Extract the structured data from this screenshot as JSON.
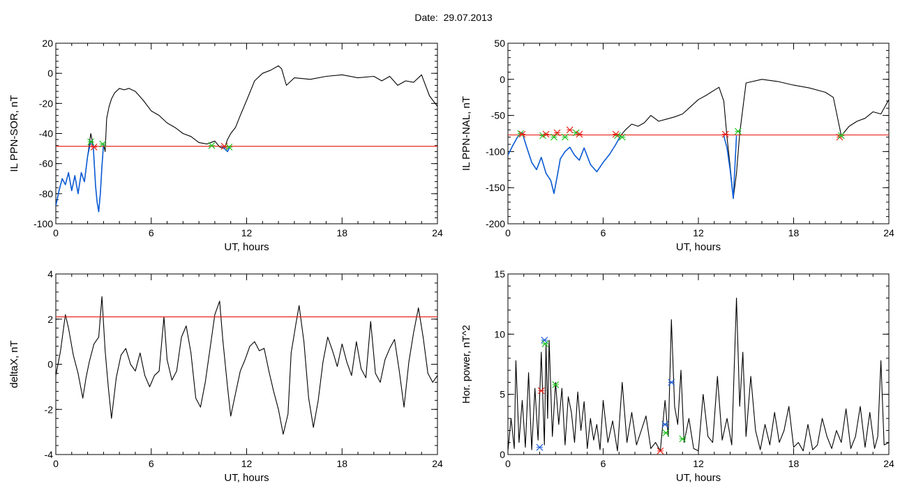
{
  "title": "Date:  29.07.2013",
  "colors": {
    "frame": "#000000",
    "signal": "#000000",
    "segment": "#0b5cd5",
    "threshold": "#e8231b",
    "mark_red": "#e8231b",
    "mark_green": "#22c222",
    "mark_blue": "#1f5fd8"
  },
  "chart_data": [
    {
      "type": "line",
      "ylabel": "IL PPN-SOR, nT",
      "xlabel": "UT, hours",
      "xlim": [
        0,
        24
      ],
      "ylim": [
        -100,
        20
      ],
      "xticks": [
        "0",
        "6",
        "12",
        "18",
        "24"
      ],
      "yticks": [
        "20",
        "0",
        "-20",
        "-40",
        "-60",
        "-80",
        "-100"
      ],
      "grid": false,
      "threshold": -48.5,
      "series": [
        {
          "role": "signal",
          "color": "black",
          "x": [
            0,
            0.2,
            0.4,
            0.6,
            0.8,
            1.0,
            1.2,
            1.4,
            1.6,
            1.8,
            2.0,
            2.2,
            2.35,
            2.5,
            2.6,
            2.7,
            2.8,
            2.9,
            3.0,
            3.1,
            3.2,
            3.35,
            3.5,
            3.7,
            4.0,
            4.3,
            4.6,
            5.0,
            5.5,
            6.0,
            6.5,
            7.0,
            7.5,
            8.0,
            8.5,
            9.0,
            9.5,
            10.0,
            10.3,
            10.6,
            10.8,
            11.0,
            11.3,
            11.6,
            12.0,
            12.5,
            13.0,
            13.5,
            14.0,
            14.2,
            14.5,
            15.0,
            16.0,
            17.0,
            18.0,
            19.0,
            20.0,
            20.5,
            21.0,
            21.5,
            22.0,
            22.5,
            23.0,
            23.5,
            24.0
          ],
          "y": [
            -88,
            -78,
            -70,
            -74,
            -66,
            -78,
            -68,
            -80,
            -66,
            -72,
            -55,
            -40,
            -48,
            -75,
            -86,
            -92,
            -80,
            -62,
            -47,
            -52,
            -30,
            -22,
            -17,
            -13,
            -10,
            -11,
            -10,
            -12,
            -18,
            -25,
            -28,
            -33,
            -36,
            -40,
            -42,
            -46,
            -47,
            -45,
            -49,
            -50,
            -44,
            -40,
            -36,
            -28,
            -18,
            -5,
            0,
            2,
            5,
            3,
            -8,
            -3,
            -4,
            -2,
            -1,
            -3,
            -2,
            -5,
            -2,
            -8,
            -5,
            -6,
            -1,
            -15,
            -22
          ]
        },
        {
          "role": "segment",
          "color": "blue",
          "x": [
            0,
            0.2,
            0.4,
            0.6,
            0.8,
            1.0,
            1.2,
            1.4,
            1.6,
            1.8,
            2.0,
            2.2,
            2.35,
            2.5,
            2.6,
            2.7,
            2.8,
            2.9,
            3.0
          ],
          "y": [
            -88,
            -78,
            -70,
            -74,
            -66,
            -78,
            -68,
            -80,
            -66,
            -72,
            -55,
            -45,
            -48,
            -75,
            -86,
            -92,
            -80,
            -62,
            -47
          ]
        },
        {
          "role": "segment",
          "color": "blue",
          "x": [
            10.4,
            10.6,
            10.8,
            11.0
          ],
          "y": [
            -48,
            -50,
            -52,
            -48
          ]
        }
      ],
      "markers": [
        {
          "x": 2.2,
          "y": -45.5,
          "color": "green"
        },
        {
          "x": 2.4,
          "y": -49,
          "color": "red"
        },
        {
          "x": 2.95,
          "y": -47,
          "color": "green"
        },
        {
          "x": 9.8,
          "y": -48,
          "color": "green"
        },
        {
          "x": 10.6,
          "y": -48.5,
          "color": "red"
        },
        {
          "x": 10.9,
          "y": -49,
          "color": "green"
        }
      ]
    },
    {
      "type": "line",
      "ylabel": "IL PPN-NAL, nT",
      "xlabel": "UT, hours",
      "xlim": [
        0,
        24
      ],
      "ylim": [
        -200,
        50
      ],
      "xticks": [
        "0",
        "6",
        "12",
        "18",
        "24"
      ],
      "yticks": [
        "50",
        "0",
        "-50",
        "-100",
        "-150",
        "-200"
      ],
      "grid": false,
      "threshold": -77,
      "series": [
        {
          "role": "signal",
          "color": "black",
          "x": [
            0,
            0.3,
            0.6,
            0.9,
            1.2,
            1.5,
            1.8,
            2.1,
            2.4,
            2.7,
            2.9,
            3.1,
            3.3,
            3.6,
            3.9,
            4.2,
            4.5,
            4.8,
            5.2,
            5.6,
            6.0,
            6.4,
            6.8,
            7.1,
            7.4,
            7.8,
            8.2,
            8.6,
            9.0,
            9.5,
            10.0,
            10.5,
            11.0,
            11.5,
            12.0,
            12.5,
            13.0,
            13.3,
            13.6,
            13.8,
            14.0,
            14.2,
            14.4,
            14.6,
            15.0,
            16.0,
            17.0,
            18.0,
            19.0,
            20.0,
            20.5,
            21.0,
            21.5,
            22.0,
            22.5,
            23.0,
            23.5,
            24.0
          ],
          "y": [
            -105,
            -92,
            -80,
            -74,
            -95,
            -115,
            -125,
            -108,
            -130,
            -140,
            -158,
            -135,
            -110,
            -100,
            -94,
            -105,
            -112,
            -95,
            -118,
            -128,
            -115,
            -104,
            -90,
            -78,
            -70,
            -62,
            -65,
            -60,
            -50,
            -58,
            -55,
            -52,
            -48,
            -38,
            -28,
            -22,
            -15,
            -11,
            -30,
            -80,
            -120,
            -165,
            -130,
            -75,
            -5,
            0,
            -3,
            -8,
            -12,
            -18,
            -25,
            -78,
            -65,
            -58,
            -54,
            -45,
            -48,
            -28
          ]
        },
        {
          "role": "segment",
          "color": "blue",
          "x": [
            0,
            0.3,
            0.6,
            0.9,
            1.2,
            1.5,
            1.8,
            2.1,
            2.4,
            2.7,
            2.9,
            3.1,
            3.3,
            3.6,
            3.9,
            4.2,
            4.5,
            4.8,
            5.2,
            5.6,
            6.0,
            6.4,
            6.8,
            7.1
          ],
          "y": [
            -105,
            -92,
            -80,
            -74,
            -95,
            -115,
            -125,
            -108,
            -130,
            -140,
            -158,
            -135,
            -110,
            -100,
            -94,
            -105,
            -112,
            -95,
            -118,
            -128,
            -115,
            -104,
            -90,
            -78
          ]
        },
        {
          "role": "segment",
          "color": "blue",
          "x": [
            13.6,
            13.8,
            14.0,
            14.2,
            14.4
          ],
          "y": [
            -78,
            -95,
            -125,
            -165,
            -78
          ]
        }
      ],
      "markers": [
        {
          "x": 0.8,
          "y": -75,
          "color": "green"
        },
        {
          "x": 0.9,
          "y": -76,
          "color": "red"
        },
        {
          "x": 2.2,
          "y": -78,
          "color": "green"
        },
        {
          "x": 2.4,
          "y": -76,
          "color": "red"
        },
        {
          "x": 2.9,
          "y": -80,
          "color": "green"
        },
        {
          "x": 3.1,
          "y": -74,
          "color": "red"
        },
        {
          "x": 3.6,
          "y": -80,
          "color": "green"
        },
        {
          "x": 3.9,
          "y": -70,
          "color": "red"
        },
        {
          "x": 4.3,
          "y": -74,
          "color": "green"
        },
        {
          "x": 4.5,
          "y": -76,
          "color": "red"
        },
        {
          "x": 6.9,
          "y": -78,
          "color": "green"
        },
        {
          "x": 6.8,
          "y": -76,
          "color": "red"
        },
        {
          "x": 7.2,
          "y": -80,
          "color": "green"
        },
        {
          "x": 13.7,
          "y": -76,
          "color": "red"
        },
        {
          "x": 14.5,
          "y": -72,
          "color": "green"
        },
        {
          "x": 20.9,
          "y": -80,
          "color": "red"
        },
        {
          "x": 21.0,
          "y": -78,
          "color": "green"
        }
      ]
    },
    {
      "type": "line",
      "ylabel": "deltaX, nT",
      "xlabel": "UT, hours",
      "xlim": [
        0,
        24
      ],
      "ylim": [
        -4,
        4
      ],
      "xticks": [
        "0",
        "6",
        "12",
        "18",
        "24"
      ],
      "yticks": [
        "4",
        "2",
        "0",
        "-2",
        "-4"
      ],
      "grid": false,
      "threshold": 2.1,
      "series": [
        {
          "role": "signal",
          "color": "black",
          "x": [
            0,
            0.3,
            0.6,
            0.8,
            1.1,
            1.4,
            1.7,
            1.9,
            2.1,
            2.4,
            2.7,
            2.9,
            3.1,
            3.3,
            3.5,
            3.8,
            4.1,
            4.4,
            4.7,
            5.0,
            5.3,
            5.6,
            5.9,
            6.2,
            6.5,
            6.8,
            7.0,
            7.3,
            7.6,
            7.9,
            8.2,
            8.5,
            8.8,
            9.1,
            9.4,
            9.7,
            10.0,
            10.3,
            10.5,
            10.8,
            11.0,
            11.3,
            11.6,
            11.9,
            12.2,
            12.5,
            12.8,
            13.1,
            13.4,
            13.7,
            14.0,
            14.3,
            14.6,
            14.8,
            15.1,
            15.3,
            15.6,
            15.9,
            16.2,
            16.5,
            16.8,
            17.1,
            17.4,
            17.7,
            18.0,
            18.3,
            18.6,
            18.9,
            19.2,
            19.5,
            19.8,
            20.1,
            20.4,
            20.7,
            21.0,
            21.3,
            21.6,
            21.9,
            22.2,
            22.5,
            22.8,
            23.1,
            23.4,
            23.7,
            24.0
          ],
          "y": [
            -0.5,
            0.6,
            2.2,
            1.6,
            0.4,
            -0.4,
            -1.5,
            -0.6,
            0.1,
            0.9,
            1.2,
            3.0,
            0.6,
            -1.0,
            -2.4,
            -0.6,
            0.4,
            0.7,
            0.0,
            -0.3,
            0.5,
            -0.5,
            -1.0,
            -0.5,
            -0.3,
            2.1,
            0.2,
            -0.7,
            -0.3,
            1.2,
            1.7,
            0.5,
            -1.5,
            -1.9,
            -0.8,
            0.7,
            2.2,
            2.8,
            1.1,
            -1.0,
            -2.3,
            -1.3,
            -0.3,
            0.2,
            0.8,
            1.0,
            0.6,
            0.7,
            -0.3,
            -1.2,
            -2.0,
            -3.1,
            -2.2,
            0.5,
            1.8,
            2.6,
            1.0,
            -1.5,
            -2.8,
            -1.6,
            0.1,
            1.2,
            0.6,
            -0.1,
            0.9,
            0.1,
            -0.5,
            1.0,
            -0.2,
            -0.6,
            1.9,
            -0.4,
            -0.8,
            0.2,
            0.7,
            1.1,
            -0.3,
            -1.9,
            0.1,
            1.4,
            2.5,
            1.2,
            -0.4,
            -0.8,
            -0.5
          ]
        }
      ],
      "markers": []
    },
    {
      "type": "line",
      "ylabel": "Hor. power, nT^2",
      "xlabel": "UT, hours",
      "xlim": [
        0,
        24
      ],
      "ylim": [
        0,
        15
      ],
      "xticks": [
        "0",
        "6",
        "12",
        "18",
        "24"
      ],
      "yticks": [
        "15",
        "10",
        "5",
        "0"
      ],
      "grid": false,
      "threshold": null,
      "series": [
        {
          "role": "signal",
          "color": "black",
          "x": [
            0,
            0.2,
            0.4,
            0.5,
            0.7,
            0.9,
            1.1,
            1.3,
            1.5,
            1.7,
            1.9,
            2.1,
            2.3,
            2.4,
            2.5,
            2.6,
            2.8,
            3.0,
            3.2,
            3.4,
            3.6,
            3.8,
            4.0,
            4.2,
            4.4,
            4.6,
            4.8,
            5.0,
            5.2,
            5.4,
            5.6,
            5.8,
            6.0,
            6.3,
            6.6,
            6.9,
            7.2,
            7.5,
            7.8,
            8.1,
            8.4,
            8.7,
            9.0,
            9.3,
            9.6,
            9.9,
            10.1,
            10.3,
            10.5,
            10.7,
            10.9,
            11.1,
            11.4,
            11.7,
            12.0,
            12.3,
            12.6,
            12.9,
            13.2,
            13.5,
            13.8,
            14.1,
            14.4,
            14.6,
            14.8,
            15.0,
            15.3,
            15.6,
            15.9,
            16.2,
            16.5,
            16.8,
            17.1,
            17.4,
            17.7,
            18.0,
            18.3,
            18.6,
            18.9,
            19.2,
            19.5,
            19.8,
            20.1,
            20.4,
            20.7,
            21.0,
            21.3,
            21.6,
            21.9,
            22.2,
            22.5,
            22.8,
            23.1,
            23.3,
            23.5,
            23.7,
            24.0
          ],
          "y": [
            0.3,
            3.0,
            0.5,
            7.8,
            1.0,
            4.5,
            0.6,
            6.8,
            0.4,
            5.5,
            1.2,
            8.5,
            0.8,
            9.2,
            3.0,
            9.5,
            1.5,
            6.0,
            2.5,
            5.5,
            0.8,
            4.8,
            3.5,
            1.0,
            5.2,
            2.0,
            4.4,
            0.5,
            3.0,
            1.2,
            2.5,
            0.4,
            4.5,
            1.0,
            2.8,
            0.3,
            6.0,
            1.0,
            3.5,
            0.8,
            2.0,
            3.2,
            0.5,
            1.0,
            0.3,
            4.5,
            1.5,
            11.2,
            4.0,
            2.5,
            7.0,
            1.0,
            3.0,
            0.5,
            0.3,
            5.0,
            1.5,
            1.0,
            6.5,
            1.2,
            3.0,
            0.8,
            13.0,
            4.0,
            8.5,
            1.5,
            6.5,
            2.0,
            0.4,
            2.5,
            0.8,
            3.5,
            1.0,
            2.0,
            4.0,
            0.6,
            1.0,
            0.3,
            2.5,
            0.4,
            0.8,
            3.0,
            1.5,
            0.5,
            2.0,
            1.0,
            3.8,
            0.5,
            1.5,
            4.0,
            0.6,
            3.5,
            0.5,
            1.5,
            7.8,
            0.8,
            1.0
          ]
        }
      ],
      "markers": [
        {
          "x": 2.1,
          "y": 5.3,
          "color": "red"
        },
        {
          "x": 2.0,
          "y": 0.6,
          "color": "blue"
        },
        {
          "x": 2.3,
          "y": 9.5,
          "color": "blue"
        },
        {
          "x": 2.35,
          "y": 9.2,
          "color": "green"
        },
        {
          "x": 3.0,
          "y": 5.8,
          "color": "green"
        },
        {
          "x": 9.6,
          "y": 0.3,
          "color": "red"
        },
        {
          "x": 9.9,
          "y": 2.5,
          "color": "blue"
        },
        {
          "x": 9.95,
          "y": 1.8,
          "color": "green"
        },
        {
          "x": 10.3,
          "y": 6.0,
          "color": "blue"
        },
        {
          "x": 11.0,
          "y": 1.3,
          "color": "green"
        }
      ]
    }
  ]
}
